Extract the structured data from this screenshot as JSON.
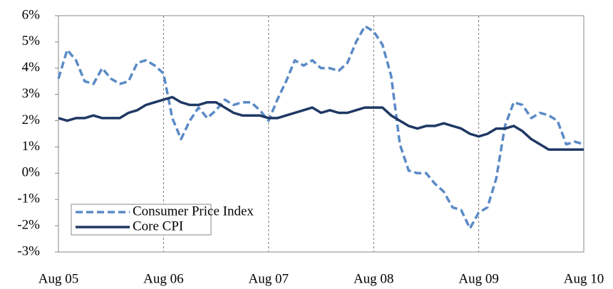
{
  "chart_data": {
    "type": "line",
    "categories": [
      "Aug 05",
      null,
      null,
      null,
      null,
      null,
      null,
      null,
      null,
      null,
      null,
      null,
      "Aug 06",
      null,
      null,
      null,
      null,
      null,
      null,
      null,
      null,
      null,
      null,
      null,
      "Aug 07",
      null,
      null,
      null,
      null,
      null,
      null,
      null,
      null,
      null,
      null,
      null,
      "Aug 08",
      null,
      null,
      null,
      null,
      null,
      null,
      null,
      null,
      null,
      null,
      null,
      "Aug 09",
      null,
      null,
      null,
      null,
      null,
      null,
      null,
      null,
      null,
      null,
      null,
      "Aug 10"
    ],
    "series": [
      {
        "name": "Consumer Price Index",
        "color": "#5a8ac6",
        "dashed": true,
        "values": [
          3.6,
          4.7,
          4.3,
          3.5,
          3.4,
          4.0,
          3.6,
          3.4,
          3.5,
          4.2,
          4.3,
          4.1,
          3.8,
          2.1,
          1.3,
          2.0,
          2.5,
          2.1,
          2.4,
          2.8,
          2.6,
          2.7,
          2.7,
          2.4,
          2.0,
          2.8,
          3.5,
          4.3,
          4.1,
          4.3,
          4.0,
          4.0,
          3.9,
          4.2,
          5.0,
          5.6,
          5.4,
          4.9,
          3.7,
          1.1,
          0.1,
          0.0,
          0.0,
          -0.4,
          -0.7,
          -1.3,
          -1.4,
          -2.1,
          -1.5,
          -1.3,
          -0.2,
          1.8,
          2.7,
          2.6,
          2.1,
          2.3,
          2.2,
          2.0,
          1.1,
          1.2,
          1.1
        ]
      },
      {
        "name": "Core CPI",
        "color": "#1f3864",
        "dashed": false,
        "values": [
          2.1,
          2.0,
          2.1,
          2.1,
          2.2,
          2.1,
          2.1,
          2.1,
          2.3,
          2.4,
          2.6,
          2.7,
          2.8,
          2.9,
          2.7,
          2.6,
          2.6,
          2.7,
          2.7,
          2.5,
          2.3,
          2.2,
          2.2,
          2.2,
          2.1,
          2.1,
          2.2,
          2.3,
          2.4,
          2.5,
          2.3,
          2.4,
          2.3,
          2.3,
          2.4,
          2.5,
          2.5,
          2.5,
          2.2,
          2.0,
          1.8,
          1.7,
          1.8,
          1.8,
          1.9,
          1.8,
          1.7,
          1.5,
          1.4,
          1.5,
          1.7,
          1.7,
          1.8,
          1.6,
          1.3,
          1.1,
          0.9,
          0.9,
          0.9,
          0.9,
          0.9
        ]
      }
    ],
    "ylim": [
      -3,
      6
    ],
    "yticks": [
      {
        "value": -3,
        "label": "-3%"
      },
      {
        "value": -2,
        "label": "-2%"
      },
      {
        "value": -1,
        "label": "-1%"
      },
      {
        "value": 0,
        "label": "0%"
      },
      {
        "value": 1,
        "label": "1%"
      },
      {
        "value": 2,
        "label": "2%"
      },
      {
        "value": 3,
        "label": "3%"
      },
      {
        "value": 4,
        "label": "4%"
      },
      {
        "value": 5,
        "label": "5%"
      },
      {
        "value": 6,
        "label": "6%"
      }
    ],
    "x_grid": true,
    "legend": "lower left"
  }
}
